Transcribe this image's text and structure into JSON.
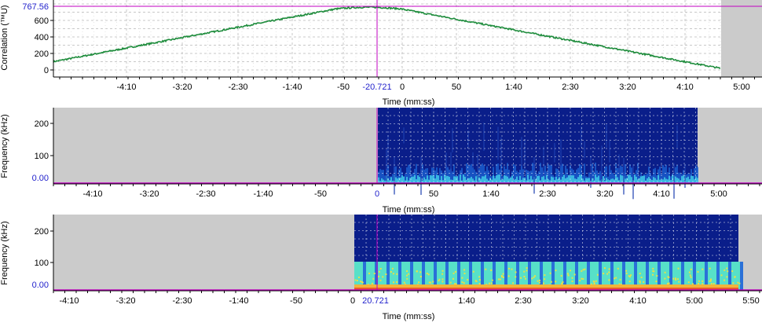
{
  "panels": {
    "correlation": {
      "ylabel": "Correlation (™U)",
      "cursor_value": "767.56",
      "cursor_time": "-20.721",
      "y_ticks": [
        "0",
        "200",
        "400",
        "600"
      ],
      "x_ticks": [
        "-4:10",
        "-3:20",
        "-2:30",
        "-1:40",
        "-50",
        "0",
        "50",
        "1:40",
        "2:30",
        "3:20",
        "4:10",
        "5:00"
      ],
      "xlabel": "Time (mm:ss)",
      "trace_color": "#1e8c3c"
    },
    "spectrogram_a": {
      "ylabel": "Frequency (kHz)",
      "y_ticks": [
        "100",
        "200"
      ],
      "y_zero": "0.00",
      "x_ticks": [
        "-4:10",
        "-3:20",
        "-2:30",
        "-1:40",
        "-50",
        "0",
        "50",
        "1:40",
        "2:30",
        "3:20",
        "4:10",
        "5:00"
      ],
      "xlabel": "Time (mm:ss)"
    },
    "spectrogram_b": {
      "ylabel": "Frequency (kHz)",
      "y_ticks": [
        "100",
        "200"
      ],
      "y_zero": "0.00",
      "cursor_time": "20.721",
      "x_ticks": [
        "-4:10",
        "-3:20",
        "-2:30",
        "-1:40",
        "-50",
        "0",
        "1:40",
        "2:30",
        "3:20",
        "4:10",
        "5:00",
        "5:50"
      ],
      "xlabel": "Time (mm:ss)"
    }
  },
  "colors": {
    "cursor": "#c000c0",
    "highlight_text": "#2222cc",
    "empty_region": "#cbcbcb",
    "spectrogram_bg": "#0a1e8a"
  }
}
